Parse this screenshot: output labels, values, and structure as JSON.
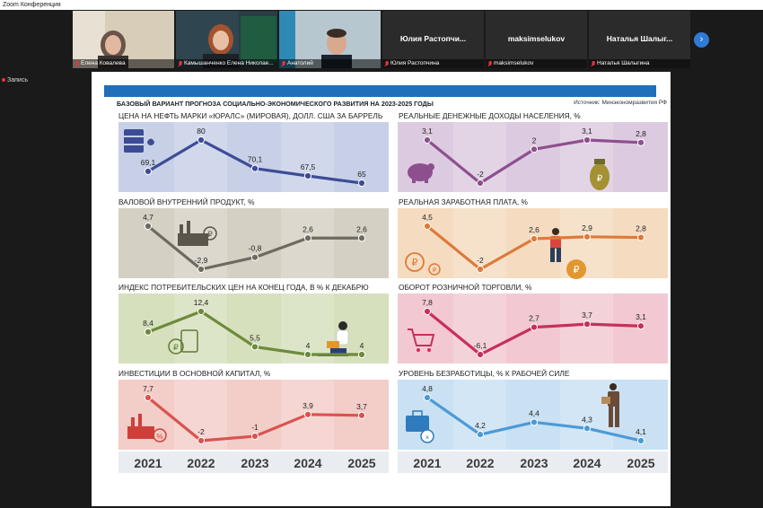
{
  "window": {
    "title": "Zoom Конференция"
  },
  "participants": [
    {
      "name": "Елена Ковалева",
      "type": "video",
      "bg": "#c9bba4"
    },
    {
      "name": "Камышанченко Елена Николае...",
      "type": "video",
      "bg": "#3f5866"
    },
    {
      "name": "Анатолий",
      "type": "video",
      "bg": "#9eb4be"
    },
    {
      "name": "Юлия Растопчина",
      "display": "Юлия Растопчи...",
      "type": "text"
    },
    {
      "name": "maksimselukov",
      "display": "maksimselukov",
      "type": "text"
    },
    {
      "name": "Наталья Шалыгина",
      "display": "Наталья Шалыг...",
      "type": "text"
    }
  ],
  "recording": {
    "label": "Запись"
  },
  "slide": {
    "title": "БАЗОВЫЙ ВАРИАНТ ПРОГНОЗА СОЦИАЛЬНО-ЭКОНОМИЧЕСКОГО РАЗВИТИЯ НА 2023-2025 ГОДЫ",
    "source": "Источник: Минэкономразвития РФ"
  },
  "chart_data": [
    {
      "type": "line",
      "title": "ЦЕНА НА НЕФТЬ МАРКИ «ЮРАЛС» (МИРОВАЯ), ДОЛЛ. США ЗА БАРРЕЛЬ",
      "x": [
        "2021",
        "2022",
        "2023",
        "2024",
        "2025"
      ],
      "values": [
        69.1,
        80,
        70.1,
        67.5,
        65
      ],
      "labels": [
        "69,1",
        "80",
        "70,1",
        "67,5",
        "65"
      ],
      "color": "#3d4c96",
      "bg": "#c8d0e8"
    },
    {
      "type": "line",
      "title": "РЕАЛЬНЫЕ ДЕНЕЖНЫЕ ДОХОДЫ НАСЕЛЕНИЯ, %",
      "x": [
        "2021",
        "2022",
        "2023",
        "2024",
        "2025"
      ],
      "values": [
        3.1,
        -2,
        2,
        3.1,
        2.8
      ],
      "labels": [
        "3,1",
        "-2",
        "2",
        "3,1",
        "2,8"
      ],
      "color": "#8e4f8f",
      "bg": "#dccbe0"
    },
    {
      "type": "line",
      "title": "ВАЛОВОЙ ВНУТРЕННИЙ ПРОДУКТ, %",
      "x": [
        "2021",
        "2022",
        "2023",
        "2024",
        "2025"
      ],
      "values": [
        4.7,
        -2.9,
        -0.8,
        2.6,
        2.6
      ],
      "labels": [
        "4,7",
        "-2,9",
        "-0,8",
        "2,6",
        "2,6"
      ],
      "color": "#6e6a60",
      "bg": "#d5d0c4"
    },
    {
      "type": "line",
      "title": "РЕАЛЬНАЯ ЗАРАБОТНАЯ ПЛАТА, %",
      "x": [
        "2021",
        "2022",
        "2023",
        "2024",
        "2025"
      ],
      "values": [
        4.5,
        -2,
        2.6,
        2.9,
        2.8
      ],
      "labels": [
        "4,5",
        "-2",
        "2,6",
        "2,9",
        "2,8"
      ],
      "color": "#de7a3a",
      "bg": "#f5dcc0"
    },
    {
      "type": "line",
      "title": "ИНДЕКС ПОТРЕБИТЕЛЬСКИХ ЦЕН НА КОНЕЦ ГОДА, В % К ДЕКАБРЮ",
      "x": [
        "2021",
        "2022",
        "2023",
        "2024",
        "2025"
      ],
      "values": [
        8.4,
        12.4,
        5.5,
        4,
        4
      ],
      "labels": [
        "8,4",
        "12,4",
        "5,5",
        "4",
        "4"
      ],
      "color": "#6d8a3c",
      "bg": "#d6e0bc"
    },
    {
      "type": "line",
      "title": "ОБОРОТ РОЗНИЧНОЙ ТОРГОВЛИ, %",
      "x": [
        "2021",
        "2022",
        "2023",
        "2024",
        "2025"
      ],
      "values": [
        7.8,
        -6.1,
        2.7,
        3.7,
        3.1
      ],
      "labels": [
        "7,8",
        "-6,1",
        "2,7",
        "3,7",
        "3,1"
      ],
      "color": "#c7305a",
      "bg": "#f2c9d2"
    },
    {
      "type": "line",
      "title": "ИНВЕСТИЦИИ В ОСНОВНОЙ КАПИТАЛ, %",
      "x": [
        "2021",
        "2022",
        "2023",
        "2024",
        "2025"
      ],
      "values": [
        7.7,
        -2,
        -1,
        3.9,
        3.7
      ],
      "labels": [
        "7,7",
        "-2",
        "-1",
        "3,9",
        "3,7"
      ],
      "color": "#d9534f",
      "bg": "#f3cdc8"
    },
    {
      "type": "line",
      "title": "УРОВЕНЬ БЕЗРАБОТИЦЫ, % К РАБОЧЕЙ СИЛЕ",
      "x": [
        "2021",
        "2022",
        "2023",
        "2024",
        "2025"
      ],
      "values": [
        4.8,
        4.2,
        4.4,
        4.3,
        4.1
      ],
      "labels": [
        "4,8",
        "4,2",
        "4,4",
        "4,3",
        "4,1"
      ],
      "color": "#4b9ad6",
      "bg": "#c9e1f3"
    }
  ],
  "years": [
    "2021",
    "2022",
    "2023",
    "2024",
    "2025"
  ]
}
